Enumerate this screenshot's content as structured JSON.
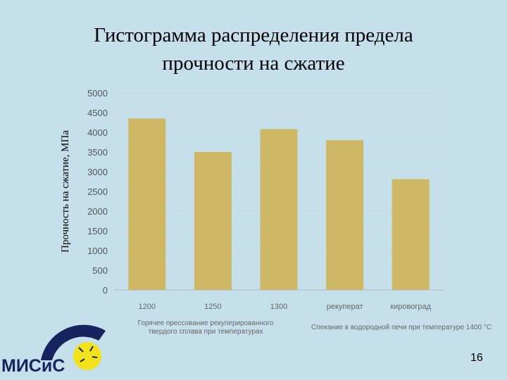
{
  "page": {
    "number": "16"
  },
  "logo": {
    "text": "МИСиС"
  },
  "chart_data": {
    "type": "bar",
    "title": "Гистограмма распределения предела прочности на сжатие",
    "title_lines": [
      "Гистограмма распределения предела",
      "прочности на сжатие"
    ],
    "ylabel": "Прочность на сжатие, МПа",
    "xlabel": "",
    "categories": [
      "1200",
      "1250",
      "1300",
      "рекуперат",
      "кировоград"
    ],
    "values": [
      4350,
      3500,
      4080,
      3800,
      2810
    ],
    "ylim": [
      0,
      5000
    ],
    "yticks": [
      0,
      500,
      1000,
      1500,
      2000,
      2500,
      3000,
      3500,
      4000,
      4500,
      5000
    ],
    "grid": true,
    "bar_color": "#cfb865",
    "group_labels": [
      {
        "lines": [
          "Горячее прессование рекуперированного",
          "твердого сплава при температурах"
        ],
        "categories": [
          0,
          1,
          2
        ]
      },
      {
        "lines": [
          "Спекание в водородной печи при температуре 1400 °С"
        ],
        "categories": [
          3,
          4
        ]
      }
    ]
  }
}
